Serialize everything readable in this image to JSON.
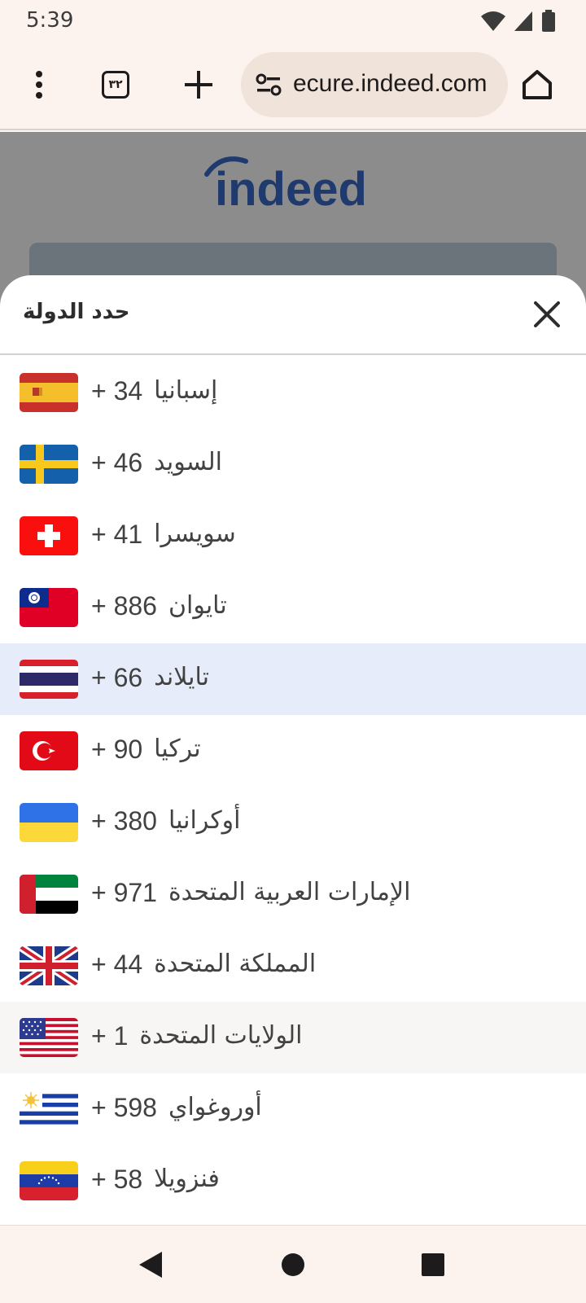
{
  "status_bar": {
    "time": "5:39"
  },
  "browser": {
    "tab_count": "٣٢",
    "url": "ecure.indeed.com"
  },
  "background_page": {
    "logo_text": "indeed"
  },
  "sheet": {
    "title": "حدد الدولة",
    "countries": [
      {
        "name": "إسبانيا",
        "dial": "+ 34",
        "flag": "spain"
      },
      {
        "name": "السويد",
        "dial": "+ 46",
        "flag": "sweden"
      },
      {
        "name": "سويسرا",
        "dial": "+ 41",
        "flag": "switzerland"
      },
      {
        "name": "تايوان",
        "dial": "+ 886",
        "flag": "taiwan"
      },
      {
        "name": "تايلاند",
        "dial": "+ 66",
        "flag": "thailand"
      },
      {
        "name": "تركيا",
        "dial": "+ 90",
        "flag": "turkey"
      },
      {
        "name": "أوكرانيا",
        "dial": "+ 380",
        "flag": "ukraine"
      },
      {
        "name": "الإمارات العربية المتحدة",
        "dial": "+ 971",
        "flag": "uae"
      },
      {
        "name": "المملكة المتحدة",
        "dial": "+ 44",
        "flag": "uk"
      },
      {
        "name": "الولايات المتحدة",
        "dial": "+ 1",
        "flag": "usa"
      },
      {
        "name": "أوروغواي",
        "dial": "+ 598",
        "flag": "uruguay"
      },
      {
        "name": "فنزويلا",
        "dial": "+ 58",
        "flag": "venezuela"
      }
    ]
  }
}
